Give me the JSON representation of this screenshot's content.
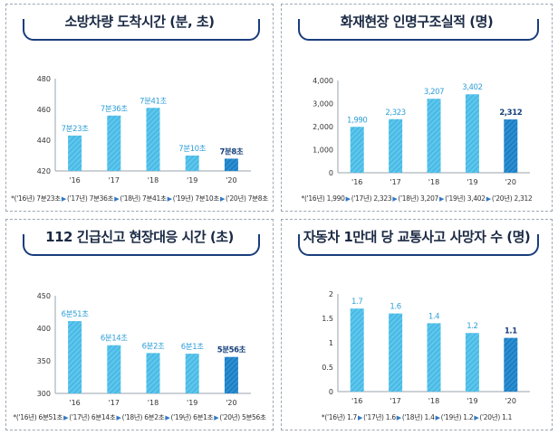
{
  "colors": {
    "bar": "#4fc0e8",
    "bar_hatch": "#2fa3d6",
    "highlight": "#1a7bc4",
    "label": "#2f9fd8",
    "label_hl": "#16407a",
    "title_bracket": "#1a3d7c"
  },
  "chart_data": [
    {
      "type": "bar",
      "title": "소방차량 도착시간 (분, 초)",
      "categories": [
        "'16",
        "'17",
        "'18",
        "'19",
        "'20"
      ],
      "values": [
        443,
        456,
        461,
        430,
        428
      ],
      "data_labels": [
        "7분23초",
        "7분36초",
        "7분41초",
        "7분10초",
        "7분8초"
      ],
      "ylim": [
        420,
        480
      ],
      "yticks": [
        420,
        440,
        460,
        480
      ],
      "highlight_index": 4,
      "footnote": [
        "*('16년) 7분23초",
        "('17년) 7분36초",
        "('18년) 7분41초",
        "('19년) 7분10초",
        "('20년) 7분8초"
      ]
    },
    {
      "type": "bar",
      "title": "화재현장 인명구조실적 (명)",
      "categories": [
        "'16",
        "'17",
        "'18",
        "'19",
        "'20"
      ],
      "values": [
        1990,
        2323,
        3207,
        3402,
        2312
      ],
      "data_labels": [
        "1,990",
        "2,323",
        "3,207",
        "3,402",
        "2,312"
      ],
      "ylim": [
        0,
        4000
      ],
      "yticks": [
        0,
        1000,
        2000,
        3000,
        4000
      ],
      "ytick_labels": [
        "0",
        "1,000",
        "2,000",
        "3,000",
        "4,000"
      ],
      "highlight_index": 4,
      "footnote": [
        "*('16년) 1,990",
        "('17년) 2,323",
        "('18년) 3,207",
        "('19년) 3,402",
        "('20년) 2,312"
      ]
    },
    {
      "type": "bar",
      "title": "112 긴급신고 현장대응 시간 (초)",
      "categories": [
        "'16",
        "'17",
        "'18",
        "'19",
        "'20"
      ],
      "values": [
        411,
        374,
        362,
        361,
        356
      ],
      "data_labels": [
        "6분51초",
        "6분14초",
        "6분2초",
        "6분1초",
        "5분56초"
      ],
      "ylim": [
        300,
        450
      ],
      "yticks": [
        300,
        350,
        400,
        450
      ],
      "highlight_index": 4,
      "footnote": [
        "*('16년) 6분51초",
        "('17년) 6분14초",
        "('18년) 6분2초",
        "('19년) 6분1초",
        "('20년) 5분56초"
      ]
    },
    {
      "type": "bar",
      "title": "자동차 1만대 당 교통사고 사망자 수 (명)",
      "categories": [
        "'16",
        "'17",
        "'18",
        "'19",
        "'20"
      ],
      "values": [
        1.7,
        1.6,
        1.4,
        1.2,
        1.1
      ],
      "data_labels": [
        "1.7",
        "1.6",
        "1.4",
        "1.2",
        "1.1"
      ],
      "ylim": [
        0,
        2
      ],
      "yticks": [
        0,
        0.5,
        1,
        1.5,
        2
      ],
      "ytick_labels": [
        "0",
        "0.5",
        "1",
        "1.5",
        "2"
      ],
      "highlight_index": 4,
      "footnote": [
        "*('16년) 1.7",
        "('17년) 1.6",
        "('18년) 1.4",
        "('19년) 1.2",
        "('20년) 1.1"
      ]
    }
  ]
}
